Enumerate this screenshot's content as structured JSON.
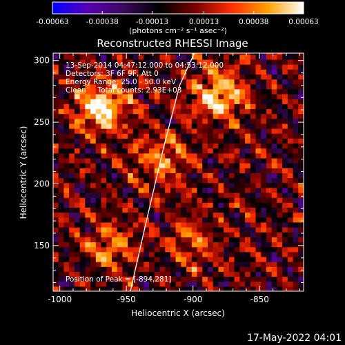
{
  "title": "Reconstructed RHESSI Image",
  "footer_timestamp": "17-May-2022 04:01",
  "colorbar": {
    "tick_labels": [
      "-0.00063",
      "-0.00038",
      "-0.00013",
      "0.00013",
      "0.00038",
      "0.00063"
    ],
    "range": [
      -0.00063,
      0.00063
    ],
    "units_text": "(photons cm⁻² s⁻¹ asec⁻²)",
    "colormap": [
      "#0000ff",
      "#5a00b4",
      "#3a0a5a",
      "#000000",
      "#7a0000",
      "#ff3000",
      "#ffa000",
      "#ffffff"
    ]
  },
  "annotations": {
    "line1": "13-Sep-2014 04:47:12.000 to 04:53:12.000",
    "line2": "Detectors: 3F 6F 9F, Att 0",
    "line3": "Energy Range: 25.0 - 50.0 keV",
    "line4": "Clean     Total counts: 2.93E+03",
    "peak": "Position of Peak = [-894,281]"
  },
  "chart_data": {
    "type": "heatmap",
    "title": "Reconstructed RHESSI Image",
    "xlabel": "Heliocentric X (arcsec)",
    "ylabel": "Heliocentric Y (arcsec)",
    "xlim": [
      -1005,
      -817
    ],
    "ylim": [
      113,
      306
    ],
    "x_ticks": [
      -1000,
      -950,
      -900,
      -850
    ],
    "y_ticks": [
      150,
      200,
      250,
      300
    ],
    "x_tick_labels": [
      "-1000",
      "-950",
      "-900",
      "-850"
    ],
    "y_tick_labels": [
      "150",
      "200",
      "250",
      "300"
    ],
    "grid": false,
    "pixel_size_arcsec": 4,
    "value_range": [
      -0.00063,
      0.00063
    ],
    "peak_position": [
      -894,
      281
    ],
    "bright_sources": [
      {
        "x": -968,
        "y": 262,
        "relative_intensity": 1.0
      },
      {
        "x": -880,
        "y": 272,
        "relative_intensity": 0.95
      },
      {
        "x": -924,
        "y": 220,
        "relative_intensity": 0.65
      },
      {
        "x": -960,
        "y": 150,
        "relative_intensity": 0.6
      },
      {
        "x": -900,
        "y": 150,
        "relative_intensity": 0.45
      }
    ],
    "limb_curve": {
      "x": [
        -947,
        -935,
        -922,
        -910,
        -899
      ],
      "y": [
        113,
        170,
        230,
        280,
        306
      ]
    }
  }
}
